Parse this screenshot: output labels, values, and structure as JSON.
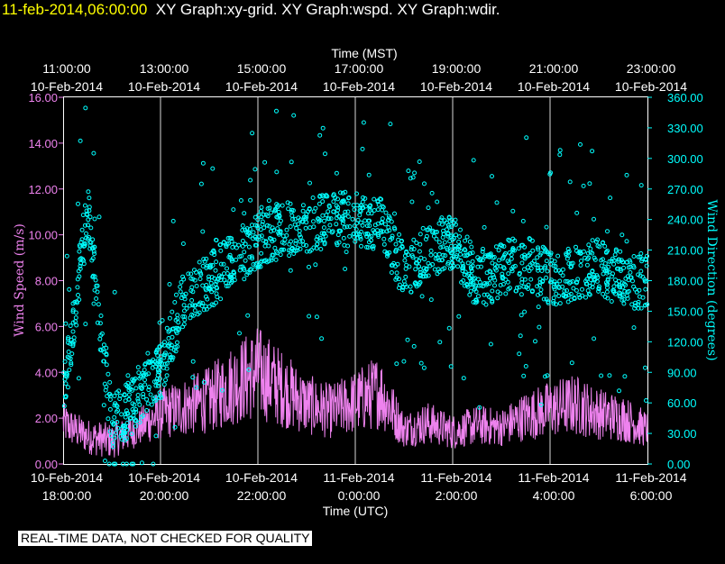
{
  "title": {
    "timestamp": "11-feb-2014,06:00:00",
    "graphs": "XY Graph:xy-grid.  XY Graph:wspd.  XY Graph:wdir."
  },
  "notice": "REAL-TIME DATA, NOT CHECKED FOR QUALITY",
  "colors": {
    "wspd": "#ee82ee",
    "wdir": "#00ffff",
    "grid": "#ffffff",
    "timestamp": "#ffff00"
  },
  "chart_data": {
    "type": "scatter",
    "x_top_label": "Time (MST)",
    "x_bottom_label": "Time (UTC)",
    "y_left_label": "Wind Speed (m/s)",
    "y_right_label": "Wind Direction (degrees)",
    "y_left_range": [
      0,
      16
    ],
    "y_right_range": [
      0,
      360
    ],
    "x_range_utc_hours": [
      18,
      30
    ],
    "grid": "vertical lines at 2-hour ticks",
    "top_ticks": [
      {
        "time": "11:00:00",
        "date": "10-Feb-2014"
      },
      {
        "time": "13:00:00",
        "date": "10-Feb-2014"
      },
      {
        "time": "15:00:00",
        "date": "10-Feb-2014"
      },
      {
        "time": "17:00:00",
        "date": "10-Feb-2014"
      },
      {
        "time": "19:00:00",
        "date": "10-Feb-2014"
      },
      {
        "time": "21:00:00",
        "date": "10-Feb-2014"
      },
      {
        "time": "23:00:00",
        "date": "10-Feb-2014"
      }
    ],
    "bottom_ticks": [
      {
        "date": "10-Feb-2014",
        "time": "18:00:00"
      },
      {
        "date": "10-Feb-2014",
        "time": "20:00:00"
      },
      {
        "date": "10-Feb-2014",
        "time": "22:00:00"
      },
      {
        "date": "11-Feb-2014",
        "time": "0:00:00"
      },
      {
        "date": "11-Feb-2014",
        "time": "2:00:00"
      },
      {
        "date": "11-Feb-2014",
        "time": "4:00:00"
      },
      {
        "date": "11-Feb-2014",
        "time": "6:00:00"
      }
    ],
    "left_ticks": [
      "0.00",
      "2.00",
      "4.00",
      "6.00",
      "8.00",
      "10.00",
      "12.00",
      "14.00",
      "16.00"
    ],
    "right_ticks": [
      "0.00",
      "30.00",
      "60.00",
      "90.00",
      "120.00",
      "150.00",
      "180.00",
      "210.00",
      "240.00",
      "270.00",
      "300.00",
      "330.00",
      "360.00"
    ],
    "series": [
      {
        "name": "wspd",
        "style": "line",
        "x_utc_hours": [
          18.0,
          18.5,
          19.0,
          19.5,
          20.0,
          20.5,
          21.0,
          21.5,
          22.0,
          22.5,
          23.0,
          23.5,
          24.0,
          24.5,
          25.0,
          25.5,
          26.0,
          26.5,
          27.0,
          27.5,
          28.0,
          28.5,
          29.0,
          29.5,
          30.0
        ],
        "wind_speed_ms": [
          1.8,
          1.2,
          1.0,
          1.5,
          2.2,
          2.5,
          2.8,
          3.5,
          4.0,
          3.3,
          2.6,
          2.3,
          2.7,
          3.2,
          1.5,
          1.8,
          1.4,
          1.7,
          1.6,
          2.1,
          2.4,
          2.6,
          2.2,
          2.0,
          1.5
        ]
      },
      {
        "name": "wdir",
        "style": "points",
        "x_utc_hours": [
          18.0,
          18.5,
          19.0,
          19.5,
          20.0,
          20.5,
          21.0,
          21.5,
          22.0,
          22.5,
          23.0,
          23.5,
          24.0,
          24.5,
          25.0,
          25.5,
          26.0,
          26.5,
          27.0,
          27.5,
          28.0,
          28.5,
          29.0,
          29.5,
          30.0
        ],
        "wind_direction_deg": [
          60,
          250,
          40,
          60,
          90,
          165,
          180,
          200,
          220,
          230,
          235,
          240,
          240,
          235,
          190,
          210,
          220,
          180,
          190,
          200,
          180,
          185,
          195,
          180,
          180
        ]
      }
    ]
  }
}
